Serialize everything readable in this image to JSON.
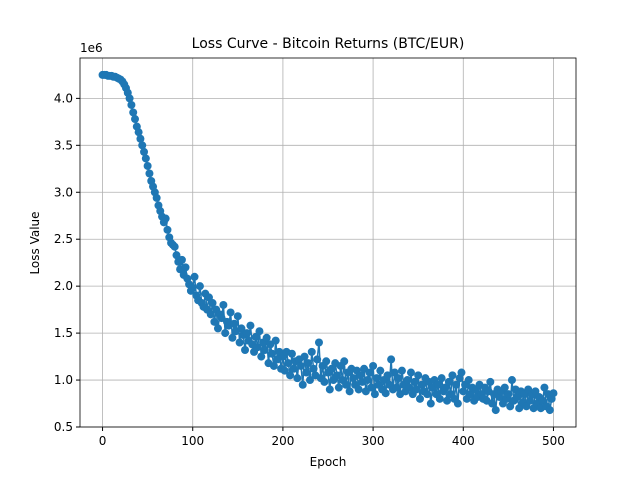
{
  "chart_data": {
    "type": "line",
    "title": "Loss Curve - Bitcoin Returns (BTC/EUR)",
    "xlabel": "Epoch",
    "ylabel": "Loss Value",
    "y_offset_label": "1e6",
    "xlim": [
      -25,
      525
    ],
    "ylim": [
      0.5,
      4.43
    ],
    "xticks": [
      0,
      100,
      200,
      300,
      400,
      500
    ],
    "yticks": [
      0.5,
      {
        "value": 1,
        "label": "1.0"
      },
      1.5,
      {
        "value": 2,
        "label": "2.0"
      },
      2.5,
      {
        "value": 3,
        "label": "3.0"
      },
      3.5,
      {
        "value": 4,
        "label": "4.0"
      }
    ],
    "grid": true,
    "markers": true,
    "series": [
      {
        "color": "#1f77b4",
        "x": [
          0,
          2,
          4,
          6,
          8,
          10,
          12,
          14,
          16,
          18,
          20,
          22,
          24,
          26,
          28,
          30,
          32,
          34,
          36,
          38,
          40,
          42,
          44,
          46,
          48,
          50,
          52,
          54,
          56,
          58,
          60,
          62,
          64,
          66,
          68,
          70,
          72,
          74,
          76,
          78,
          80,
          82,
          84,
          86,
          88,
          90,
          92,
          94,
          96,
          98,
          100,
          102,
          104,
          106,
          108,
          110,
          112,
          114,
          116,
          118,
          120,
          122,
          124,
          126,
          128,
          130,
          132,
          134,
          136,
          138,
          140,
          142,
          144,
          146,
          148,
          150,
          152,
          154,
          156,
          158,
          160,
          162,
          164,
          166,
          168,
          170,
          172,
          174,
          176,
          178,
          180,
          182,
          184,
          186,
          188,
          190,
          192,
          194,
          196,
          198,
          200,
          202,
          204,
          206,
          208,
          210,
          212,
          214,
          216,
          218,
          220,
          222,
          224,
          226,
          228,
          230,
          232,
          234,
          236,
          238,
          240,
          242,
          244,
          246,
          248,
          250,
          252,
          254,
          256,
          258,
          260,
          262,
          264,
          266,
          268,
          270,
          272,
          274,
          276,
          278,
          280,
          282,
          284,
          286,
          288,
          290,
          292,
          294,
          296,
          298,
          300,
          302,
          304,
          306,
          308,
          310,
          312,
          314,
          316,
          318,
          320,
          322,
          324,
          326,
          328,
          330,
          332,
          334,
          336,
          338,
          340,
          342,
          344,
          346,
          348,
          350,
          352,
          354,
          356,
          358,
          360,
          362,
          364,
          366,
          368,
          370,
          372,
          374,
          376,
          378,
          380,
          382,
          384,
          386,
          388,
          390,
          392,
          394,
          396,
          398,
          400,
          402,
          404,
          406,
          408,
          410,
          412,
          414,
          416,
          418,
          420,
          422,
          424,
          426,
          428,
          430,
          432,
          434,
          436,
          438,
          440,
          442,
          444,
          446,
          448,
          450,
          452,
          454,
          456,
          458,
          460,
          462,
          464,
          466,
          468,
          470,
          472,
          474,
          476,
          478,
          480,
          482,
          484,
          486,
          488,
          490,
          492,
          494,
          496,
          498,
          500
        ],
        "values": [
          4.25,
          4.25,
          4.25,
          4.24,
          4.24,
          4.24,
          4.23,
          4.23,
          4.22,
          4.21,
          4.2,
          4.18,
          4.15,
          4.11,
          4.06,
          4.0,
          3.93,
          3.85,
          3.78,
          3.7,
          3.64,
          3.57,
          3.5,
          3.43,
          3.36,
          3.28,
          3.2,
          3.12,
          3.06,
          3.0,
          2.94,
          2.86,
          2.8,
          2.74,
          2.68,
          2.72,
          2.6,
          2.52,
          2.46,
          2.44,
          2.42,
          2.33,
          2.26,
          2.18,
          2.28,
          2.12,
          2.2,
          2.08,
          2.02,
          1.95,
          1.98,
          2.1,
          1.9,
          1.85,
          2.0,
          1.82,
          1.78,
          1.92,
          1.75,
          1.88,
          1.7,
          1.82,
          1.62,
          1.75,
          1.55,
          1.7,
          1.66,
          1.8,
          1.5,
          1.62,
          1.58,
          1.72,
          1.45,
          1.6,
          1.52,
          1.68,
          1.4,
          1.55,
          1.48,
          1.32,
          1.5,
          1.42,
          1.58,
          1.38,
          1.3,
          1.46,
          1.35,
          1.52,
          1.25,
          1.4,
          1.32,
          1.45,
          1.18,
          1.38,
          1.28,
          1.15,
          1.42,
          1.22,
          1.3,
          1.12,
          1.25,
          1.1,
          1.3,
          1.18,
          1.05,
          1.28,
          1.12,
          1.2,
          1.02,
          1.22,
          1.15,
          0.95,
          1.25,
          1.08,
          1.18,
          1.0,
          1.3,
          1.12,
          1.05,
          1.22,
          1.4,
          1.02,
          1.15,
          0.98,
          1.2,
          1.08,
          0.9,
          1.12,
          1.0,
          1.18,
          1.05,
          0.92,
          1.15,
          1.0,
          1.2,
          0.95,
          1.08,
          0.88,
          1.12,
          1.02,
          0.95,
          1.1,
          0.9,
          1.05,
          0.98,
          1.12,
          0.88,
          1.0,
          1.08,
          0.92,
          1.15,
          0.85,
          1.02,
          0.95,
          1.1,
          0.9,
          1.0,
          0.86,
          1.05,
          0.95,
          1.22,
          0.9,
          1.08,
          0.92,
          1.02,
          0.85,
          1.1,
          0.95,
          0.88,
          1.0,
          0.92,
          1.08,
          0.85,
          0.98,
          0.9,
          1.05,
          0.8,
          0.95,
          0.88,
          1.02,
          0.85,
          0.98,
          0.75,
          0.92,
          1.0,
          0.85,
          0.95,
          0.8,
          1.02,
          0.88,
          0.92,
          0.78,
          0.98,
          0.85,
          1.05,
          0.8,
          0.95,
          0.75,
          1.02,
          1.08,
          0.88,
          0.95,
          0.8,
          1.0,
          0.85,
          0.92,
          0.78,
          0.9,
          0.82,
          0.95,
          0.85,
          0.8,
          0.92,
          0.78,
          0.88,
          0.98,
          0.75,
          0.85,
          0.68,
          0.9,
          0.82,
          0.88,
          0.75,
          0.92,
          0.8,
          0.85,
          0.72,
          1.0,
          0.78,
          0.9,
          0.82,
          0.7,
          0.88,
          0.76,
          0.85,
          0.72,
          0.9,
          0.78,
          0.84,
          0.7,
          0.88,
          0.75,
          0.82,
          0.7,
          0.78,
          0.92,
          0.72,
          0.85,
          0.68,
          0.8,
          0.86
        ]
      }
    ]
  }
}
